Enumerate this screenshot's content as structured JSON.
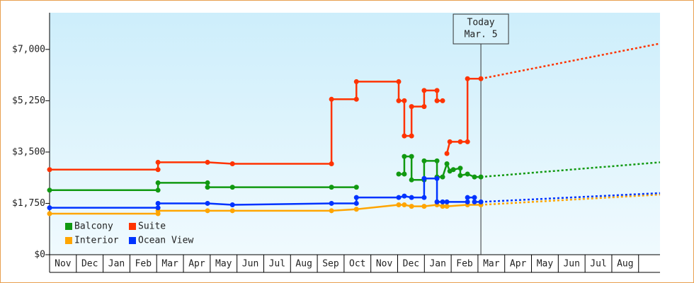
{
  "chart_data": {
    "type": "line",
    "months": [
      "Nov",
      "Dec",
      "Jan",
      "Feb",
      "Mar",
      "Apr",
      "May",
      "Jun",
      "Jul",
      "Aug",
      "Sep",
      "Oct",
      "Nov",
      "Dec",
      "Jan",
      "Feb",
      "Mar",
      "Apr",
      "May",
      "Jun",
      "Jul",
      "Aug"
    ],
    "xlim": [
      0,
      22.8
    ],
    "ylim": [
      0,
      8250
    ],
    "yticks": [
      {
        "value": 0,
        "label": "$0"
      },
      {
        "value": 1750,
        "label": "$1,750"
      },
      {
        "value": 3500,
        "label": "$3,500"
      },
      {
        "value": 5250,
        "label": "$5,250"
      },
      {
        "value": 7000,
        "label": "$7,000"
      }
    ],
    "annotation": {
      "lines": [
        "Today",
        "Mar. 5"
      ],
      "x": 16.11
    },
    "legend": "lower left",
    "series": [
      {
        "name": "Balcony",
        "color": "#119911",
        "x": [
          0,
          4.05,
          4.05,
          5.9,
          5.9,
          6.83,
          10.53,
          11.46,
          12.5,
          13.04,
          13.25,
          13.25,
          13.52,
          13.52,
          13.99,
          13.99,
          14.47,
          14.47,
          14.68,
          14.84,
          14.95,
          15.08,
          15.34,
          15.34,
          15.61,
          15.87,
          16.11
        ],
        "values": [
          2200,
          2200,
          2450,
          2450,
          2300,
          2300,
          2300,
          2300,
          null,
          2750,
          2750,
          3350,
          3350,
          2550,
          2550,
          3200,
          3200,
          2650,
          2650,
          3100,
          2850,
          2900,
          2950,
          2700,
          2750,
          2650,
          2650
        ],
        "forecast_x": [
          16.11,
          22.8
        ],
        "forecast_values": [
          2650,
          3150
        ]
      },
      {
        "name": "Suite",
        "color": "#ff3300",
        "x": [
          0,
          4.05,
          4.05,
          5.9,
          6.83,
          10.53,
          10.53,
          11.46,
          11.46,
          13.04,
          13.04,
          13.25,
          13.25,
          13.52,
          13.52,
          13.99,
          13.99,
          14.47,
          14.47,
          14.68,
          14.76,
          14.84,
          14.95,
          15.34,
          15.61,
          15.61,
          16.11
        ],
        "values": [
          2900,
          2900,
          3150,
          3150,
          3100,
          3100,
          5300,
          5300,
          5900,
          5900,
          5250,
          5250,
          4050,
          4050,
          5050,
          5050,
          5600,
          5600,
          5250,
          5250,
          null,
          3450,
          3850,
          3850,
          3850,
          6000,
          6000
        ],
        "forecast_x": [
          16.11,
          22.8
        ],
        "forecast_values": [
          6000,
          7200
        ]
      },
      {
        "name": "Interior",
        "color": "#ffa500",
        "x": [
          0,
          4.05,
          4.05,
          5.9,
          6.83,
          10.53,
          11.46,
          13.04,
          13.25,
          13.52,
          13.99,
          14.47,
          14.68,
          14.84,
          15.61,
          16.11
        ],
        "values": [
          1400,
          1400,
          1500,
          1500,
          1500,
          1500,
          1550,
          1700,
          1700,
          1650,
          1650,
          1700,
          1650,
          1650,
          1700,
          1700
        ],
        "forecast_x": [
          16.11,
          22.8
        ],
        "forecast_values": [
          1700,
          2050
        ]
      },
      {
        "name": "Ocean View",
        "color": "#0033ff",
        "x": [
          0,
          4.05,
          4.05,
          5.9,
          6.83,
          10.53,
          11.46,
          11.46,
          13.04,
          13.25,
          13.52,
          13.99,
          13.99,
          14.47,
          14.47,
          14.68,
          14.84,
          15.61,
          15.61,
          15.87,
          15.87,
          16.11
        ],
        "values": [
          1600,
          1600,
          1750,
          1750,
          1700,
          1750,
          1750,
          1950,
          1950,
          2000,
          1950,
          1950,
          2600,
          2600,
          1800,
          1800,
          1800,
          1800,
          1950,
          1950,
          1800,
          1800
        ],
        "forecast_x": [
          16.11,
          22.8
        ],
        "forecast_values": [
          1800,
          2100
        ]
      }
    ]
  }
}
